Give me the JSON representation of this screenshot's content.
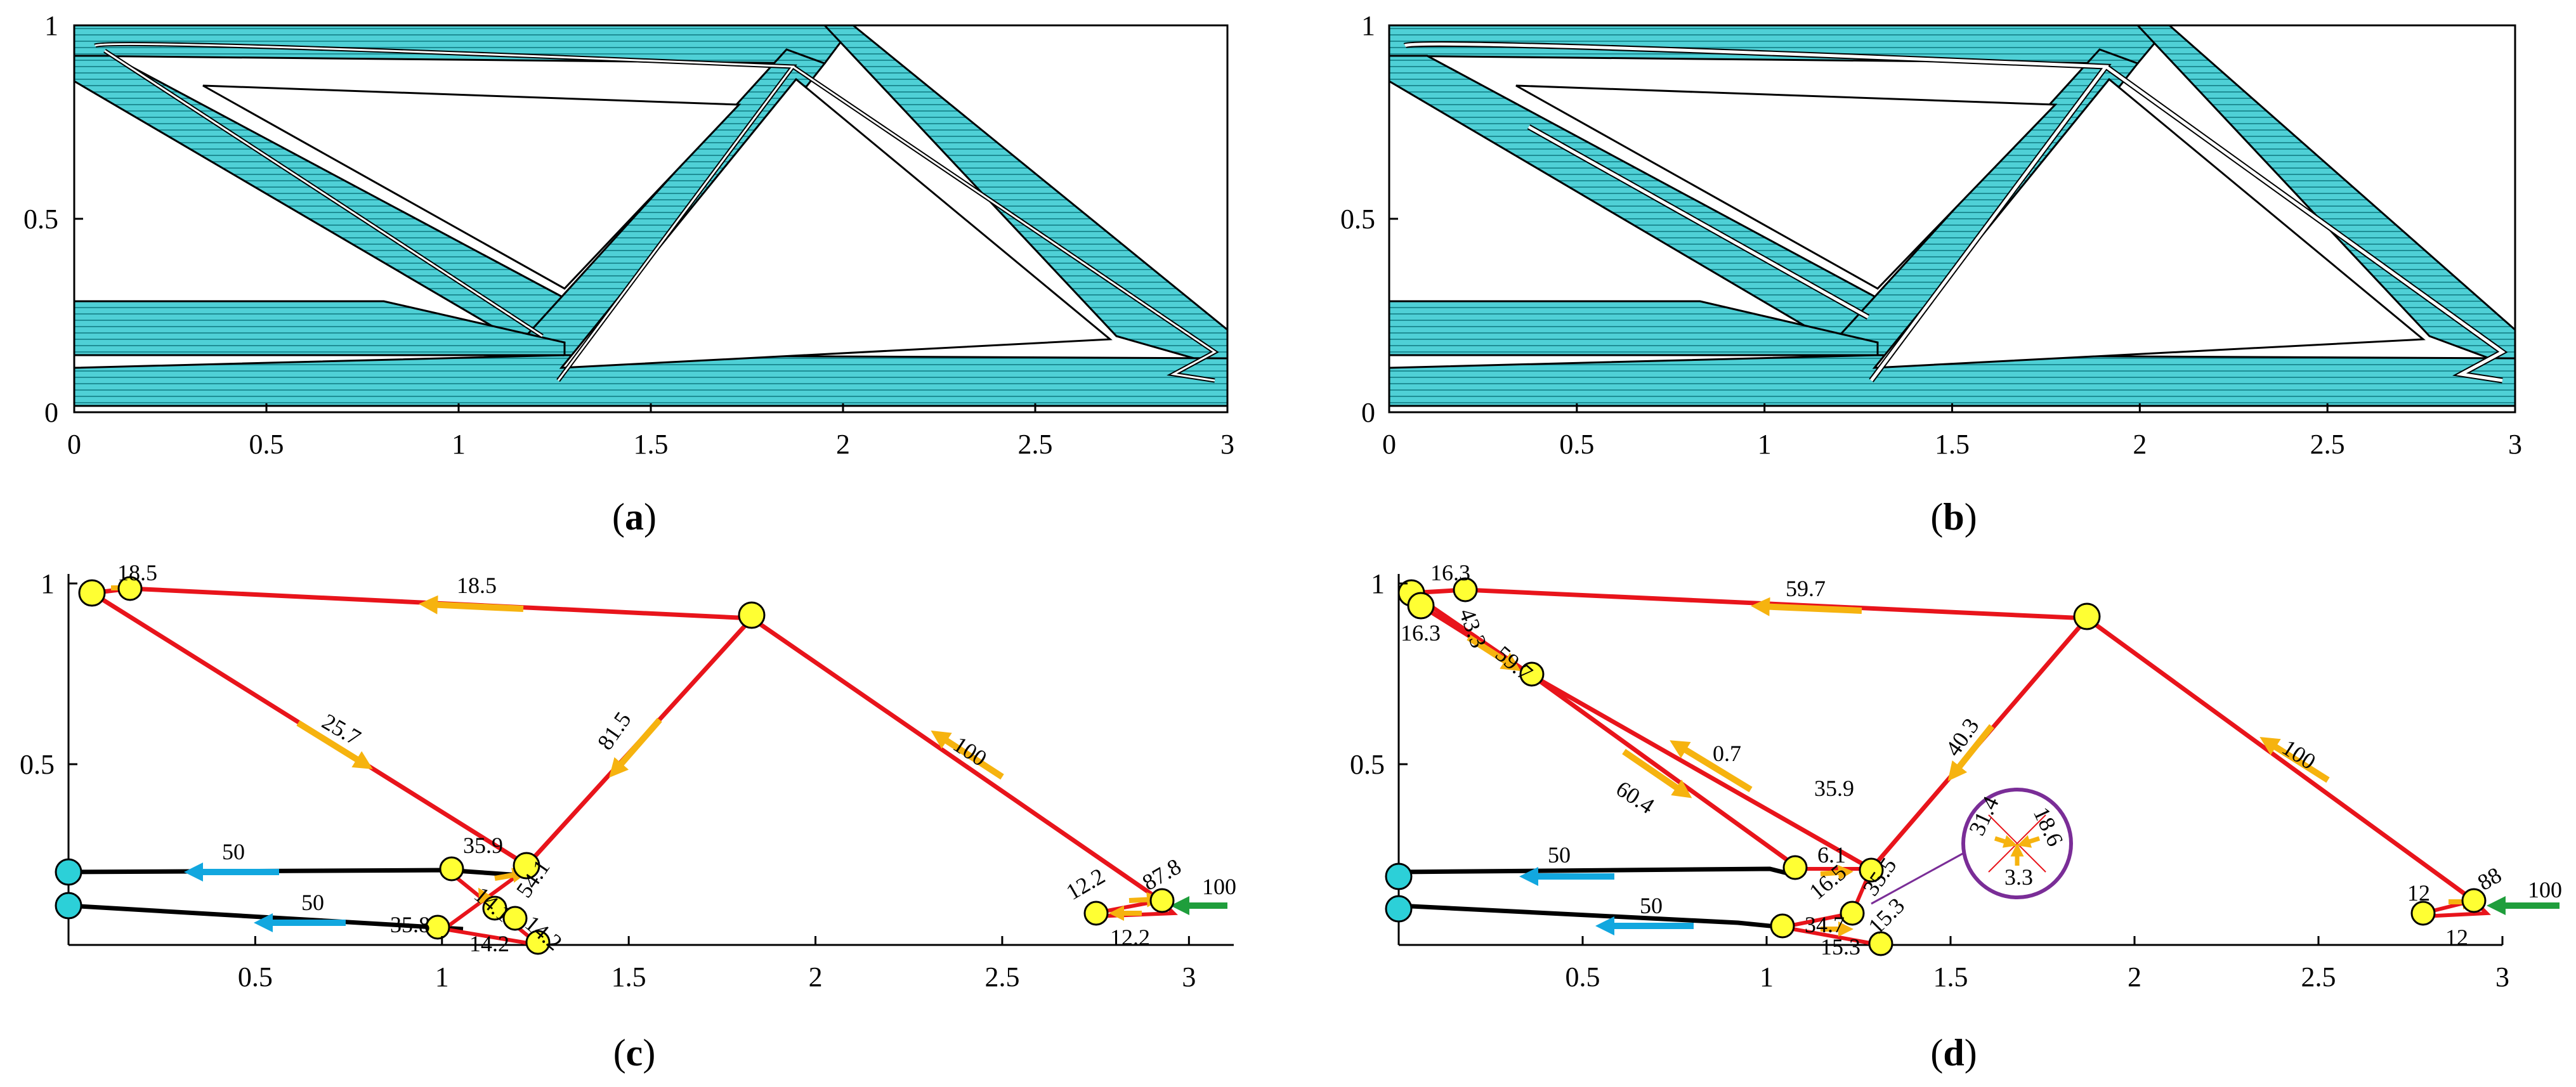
{
  "panels": [
    {
      "id": "a",
      "caption": "(a)",
      "caption_letter": "a",
      "x_ticks": [
        "0",
        "0.5",
        "1",
        "1.5",
        "2",
        "2.5",
        "3"
      ],
      "y_ticks": [
        "0",
        "0.5",
        "1"
      ]
    },
    {
      "id": "b",
      "caption": "(b)",
      "caption_letter": "b",
      "x_ticks": [
        "0",
        "0.5",
        "1",
        "1.5",
        "2",
        "2.5",
        "3"
      ],
      "y_ticks": [
        "0",
        "0.5",
        "1"
      ]
    },
    {
      "id": "c",
      "caption": "(c)",
      "caption_letter": "c",
      "x_ticks": [
        "0.5",
        "1",
        "1.5",
        "2",
        "2.5",
        "3"
      ],
      "y_ticks": [
        "0.5",
        "1"
      ],
      "force_labels": [
        "18.5",
        "18.5",
        "25.7",
        "81.5",
        "100",
        "50",
        "50",
        "35.9",
        "54.1",
        "14.1",
        "14.2",
        "35.8",
        "14.2",
        "12.2",
        "87.8",
        "12.2",
        "100"
      ]
    },
    {
      "id": "d",
      "caption": "(d)",
      "caption_letter": "d",
      "x_ticks": [
        "0.5",
        "1",
        "1.5",
        "2",
        "2.5",
        "3"
      ],
      "y_ticks": [
        "0.5",
        "1"
      ],
      "force_labels": [
        "16.3",
        "16.3",
        "43.3",
        "59.7",
        "59.7",
        "0.7",
        "35.9",
        "60.4",
        "40.3",
        "100",
        "50",
        "50",
        "6.1",
        "16.5",
        "35.5",
        "34.7",
        "15.3",
        "15.3",
        "31.4",
        "18.6",
        "3.3",
        "12",
        "88",
        "12",
        "100"
      ]
    }
  ],
  "colors": {
    "band_fill": "#4fd0d6",
    "band_hatch": "#1e8e95",
    "compression_path": "#e8141b",
    "tension_path": "#000000",
    "force_arrow": "#f6b30f",
    "support_arrow": "#12a7df",
    "load_arrow": "#1f9e3c",
    "node_fill": "#ffff33",
    "support_node": "#2cd0d8",
    "inset_circle": "#7a2d97"
  }
}
